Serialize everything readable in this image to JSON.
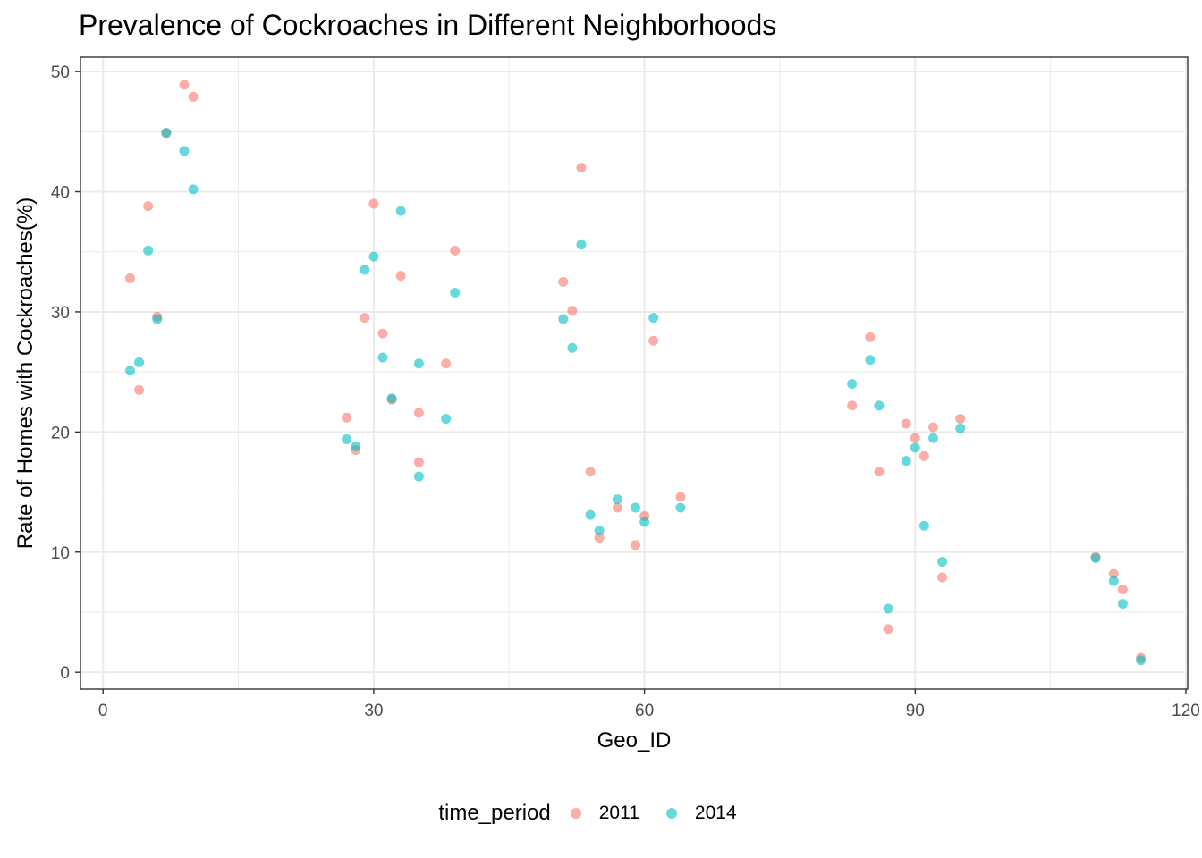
{
  "chart_data": {
    "type": "scatter",
    "title": "Prevalence of Cockroaches in Different Neighborhoods",
    "xlabel": "Geo_ID",
    "ylabel": "Rate of Homes with Cockroaches(%)",
    "xlim": [
      -2.5,
      120.2
    ],
    "ylim": [
      -1.4,
      51.2
    ],
    "xticks": [
      0,
      30,
      60,
      90,
      120
    ],
    "yticks": [
      0,
      10,
      20,
      30,
      40,
      50
    ],
    "grid": true,
    "legend_position": "bottom",
    "legend_title": "time_period",
    "series": [
      {
        "name": "2011",
        "color": "#F8766D",
        "points": [
          [
            3,
            32.8
          ],
          [
            4,
            23.5
          ],
          [
            5,
            38.8
          ],
          [
            6,
            29.6
          ],
          [
            7,
            44.9
          ],
          [
            9,
            48.9
          ],
          [
            10,
            47.9
          ],
          [
            27,
            21.2
          ],
          [
            28,
            18.5
          ],
          [
            29,
            29.5
          ],
          [
            30,
            39.0
          ],
          [
            31,
            28.2
          ],
          [
            32,
            22.7
          ],
          [
            33,
            33.0
          ],
          [
            35,
            21.6
          ],
          [
            35,
            17.5
          ],
          [
            38,
            25.7
          ],
          [
            39,
            35.1
          ],
          [
            51,
            32.5
          ],
          [
            52,
            30.1
          ],
          [
            53,
            42.0
          ],
          [
            54,
            16.7
          ],
          [
            55,
            11.2
          ],
          [
            57,
            13.7
          ],
          [
            59,
            10.6
          ],
          [
            60,
            13.0
          ],
          [
            61,
            27.6
          ],
          [
            64,
            14.6
          ],
          [
            83,
            22.2
          ],
          [
            85,
            27.9
          ],
          [
            86,
            16.7
          ],
          [
            87,
            3.6
          ],
          [
            89,
            20.7
          ],
          [
            90,
            19.5
          ],
          [
            91,
            18.0
          ],
          [
            92,
            20.4
          ],
          [
            93,
            7.9
          ],
          [
            95,
            21.1
          ],
          [
            110,
            9.6
          ],
          [
            112,
            8.2
          ],
          [
            113,
            6.9
          ],
          [
            115,
            1.2
          ]
        ]
      },
      {
        "name": "2014",
        "color": "#00BFC4",
        "points": [
          [
            3,
            25.1
          ],
          [
            4,
            25.8
          ],
          [
            5,
            35.1
          ],
          [
            6,
            29.4
          ],
          [
            7,
            44.9
          ],
          [
            9,
            43.4
          ],
          [
            10,
            40.2
          ],
          [
            27,
            19.4
          ],
          [
            28,
            18.8
          ],
          [
            29,
            33.5
          ],
          [
            30,
            34.6
          ],
          [
            31,
            26.2
          ],
          [
            32,
            22.8
          ],
          [
            33,
            38.4
          ],
          [
            35,
            25.7
          ],
          [
            35,
            16.3
          ],
          [
            38,
            21.1
          ],
          [
            39,
            31.6
          ],
          [
            51,
            29.4
          ],
          [
            52,
            27.0
          ],
          [
            53,
            35.6
          ],
          [
            54,
            13.1
          ],
          [
            55,
            11.8
          ],
          [
            57,
            14.4
          ],
          [
            59,
            13.7
          ],
          [
            60,
            12.5
          ],
          [
            61,
            29.5
          ],
          [
            64,
            13.7
          ],
          [
            83,
            24.0
          ],
          [
            85,
            26.0
          ],
          [
            86,
            22.2
          ],
          [
            87,
            5.3
          ],
          [
            89,
            17.6
          ],
          [
            90,
            18.7
          ],
          [
            91,
            12.2
          ],
          [
            92,
            19.5
          ],
          [
            93,
            9.2
          ],
          [
            95,
            20.3
          ],
          [
            110,
            9.5
          ],
          [
            112,
            7.6
          ],
          [
            113,
            5.7
          ],
          [
            115,
            1.0
          ]
        ]
      }
    ]
  }
}
